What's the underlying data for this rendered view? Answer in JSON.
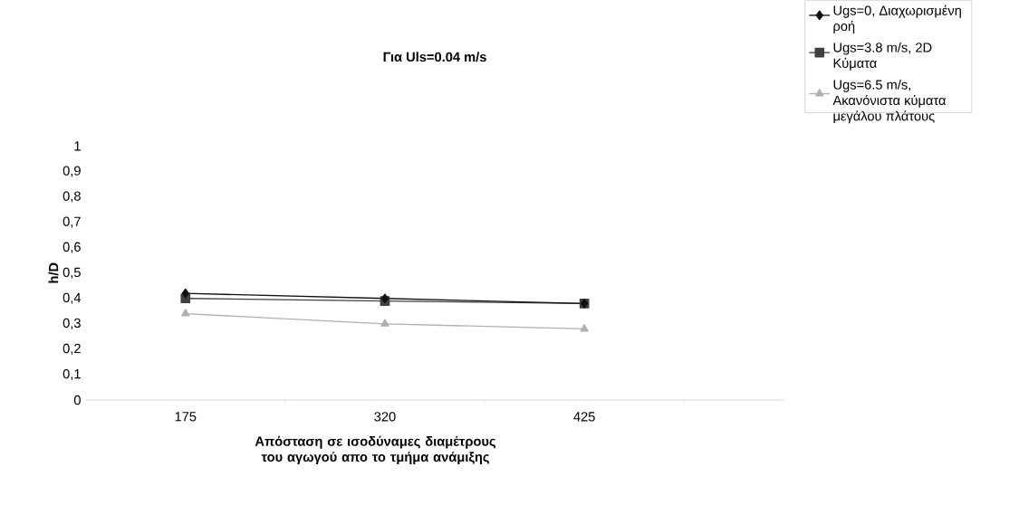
{
  "chart_data": {
    "type": "line",
    "title": "Για Uls=0.04 m/s",
    "xlabel": "Απόσταση σε ισοδύναμες διαμέτρους του αγωγού απο το τμήμα ανάμιξης",
    "ylabel": "h/D",
    "categories": [
      "175",
      "320",
      "425"
    ],
    "ylim": [
      0,
      1
    ],
    "yticks": [
      0,
      {
        "value": 0.1,
        "label": "0,1"
      },
      {
        "value": 0.2,
        "label": "0,2"
      },
      {
        "value": 0.3,
        "label": "0,3"
      },
      {
        "value": 0.4,
        "label": "0,4"
      },
      {
        "value": 0.5,
        "label": "0,5"
      },
      {
        "value": 0.6,
        "label": "0,6"
      },
      {
        "value": 0.7,
        "label": "0,7"
      },
      {
        "value": 0.8,
        "label": "0,8"
      },
      {
        "value": 0.9,
        "label": "0,9"
      },
      1
    ],
    "legend": "right",
    "grid": false,
    "line_style": "solid",
    "series": [
      {
        "name": "Ugs=0, Διαχωρισμένη ροή",
        "color": "#111111",
        "marker": "diamond",
        "values": [
          0.42,
          0.4,
          0.38
        ]
      },
      {
        "name": "Ugs=3.8 m/s, 2D Κύματα",
        "color": "#404040",
        "marker": "square",
        "values": [
          0.4,
          0.39,
          0.38
        ]
      },
      {
        "name": "Ugs=6.5 m/s, Ακανόνιστα κύματα μεγάλου πλάτους",
        "color": "#b0b0b0",
        "marker": "triangle",
        "values": [
          0.34,
          0.3,
          0.28
        ]
      }
    ]
  }
}
